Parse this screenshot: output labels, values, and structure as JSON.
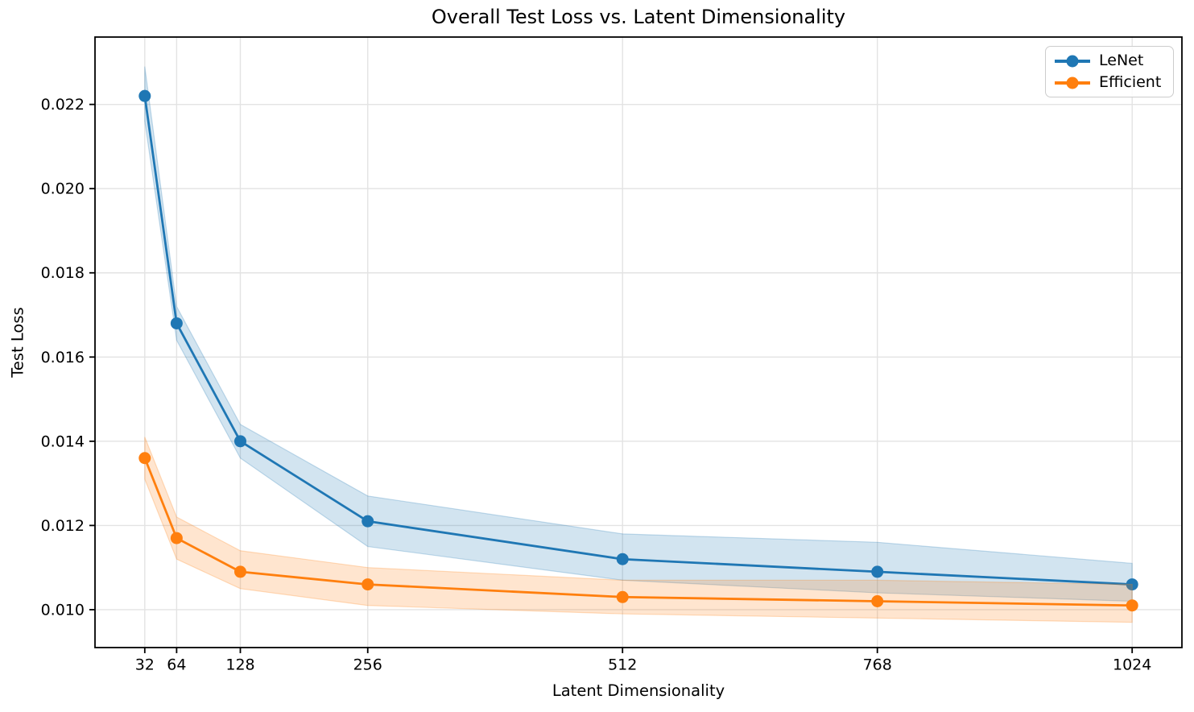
{
  "chart_data": {
    "type": "line",
    "title": "Overall Test Loss vs. Latent Dimensionality",
    "xlabel": "Latent Dimensionality",
    "ylabel": "Test Loss",
    "x": [
      32,
      64,
      128,
      256,
      512,
      768,
      1024
    ],
    "x_tick_labels": [
      "32",
      "64",
      "128",
      "256",
      "512",
      "768",
      "1024"
    ],
    "y_ticks": [
      0.01,
      0.012,
      0.014,
      0.016,
      0.018,
      0.02,
      0.022
    ],
    "y_tick_labels": [
      "0.010",
      "0.012",
      "0.014",
      "0.016",
      "0.018",
      "0.020",
      "0.022"
    ],
    "xlim": [
      -18,
      1074
    ],
    "ylim": [
      0.0091,
      0.0236
    ],
    "grid": true,
    "grid_color": "#e3e3e3",
    "legend_position": "upper right",
    "series": [
      {
        "name": "LeNet",
        "color": "#1f77b4",
        "values": [
          0.0222,
          0.0168,
          0.014,
          0.0121,
          0.0112,
          0.0109,
          0.0106
        ],
        "band_upper": [
          0.0229,
          0.0172,
          0.0144,
          0.0127,
          0.0118,
          0.0116,
          0.0111
        ],
        "band_lower": [
          0.0216,
          0.0164,
          0.0136,
          0.0115,
          0.0107,
          0.0104,
          0.0102
        ]
      },
      {
        "name": "Efficient",
        "color": "#ff7f0e",
        "values": [
          0.0136,
          0.0117,
          0.0109,
          0.0106,
          0.0103,
          0.0102,
          0.0101
        ],
        "band_upper": [
          0.0141,
          0.0122,
          0.0114,
          0.011,
          0.0107,
          0.0107,
          0.0106
        ],
        "band_lower": [
          0.0131,
          0.0112,
          0.0105,
          0.0101,
          0.0099,
          0.0098,
          0.0097
        ]
      }
    ]
  }
}
